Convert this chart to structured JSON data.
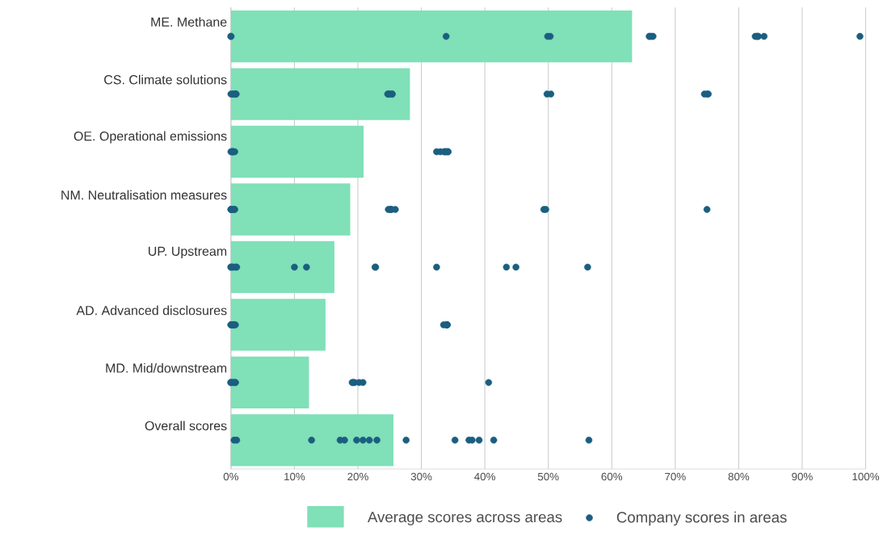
{
  "chart_data": {
    "type": "bar",
    "orientation": "horizontal",
    "categories": [
      "ME. Methane",
      "CS. Climate solutions",
      "OE. Operational emissions",
      "NM. Neutralisation measures",
      "UP. Upstream",
      "AD. Advanced disclosures",
      "MD. Mid/downstream",
      "Overall scores"
    ],
    "xlim": [
      0,
      100
    ],
    "xticks": [
      {
        "value": 0,
        "label": "0%"
      },
      {
        "value": 10,
        "label": "10%"
      },
      {
        "value": 20,
        "label": "20%"
      },
      {
        "value": 30,
        "label": "30%"
      },
      {
        "value": 40,
        "label": "40%"
      },
      {
        "value": 50,
        "label": "50%"
      },
      {
        "value": 60,
        "label": "60%"
      },
      {
        "value": 70,
        "label": "70%"
      },
      {
        "value": 80,
        "label": "80%"
      },
      {
        "value": 90,
        "label": "90%"
      },
      {
        "value": 100,
        "label": "100%"
      }
    ],
    "grid": "x",
    "legend": "bottom",
    "marker": "circle",
    "series": [
      {
        "name": "Average scores across areas",
        "color": "#80e0b8",
        "values": [
          63.2,
          28.2,
          20.9,
          18.8,
          16.3,
          14.9,
          12.3,
          25.6
        ]
      },
      {
        "name": "Company scores in areas",
        "type": "scatter",
        "color": "#1b5e80",
        "x": [
          "ME. Methane",
          "ME. Methane",
          "ME. Methane",
          "ME. Methane",
          "ME. Methane",
          "ME. Methane",
          "ME. Methane",
          "ME. Methane",
          "ME. Methane",
          "ME. Methane",
          "ME. Methane",
          "ME. Methane",
          "ME. Methane",
          "ME. Methane",
          "ME. Methane",
          "CS. Climate solutions",
          "CS. Climate solutions",
          "CS. Climate solutions",
          "CS. Climate solutions",
          "CS. Climate solutions",
          "CS. Climate solutions",
          "CS. Climate solutions",
          "CS. Climate solutions",
          "CS. Climate solutions",
          "CS. Climate solutions",
          "CS. Climate solutions",
          "CS. Climate solutions",
          "CS. Climate solutions",
          "CS. Climate solutions",
          "CS. Climate solutions",
          "OE. Operational emissions",
          "OE. Operational emissions",
          "OE. Operational emissions",
          "OE. Operational emissions",
          "OE. Operational emissions",
          "OE. Operational emissions",
          "OE. Operational emissions",
          "OE. Operational emissions",
          "OE. Operational emissions",
          "OE. Operational emissions",
          "OE. Operational emissions",
          "OE. Operational emissions",
          "OE. Operational emissions",
          "OE. Operational emissions",
          "NM. Neutralisation measures",
          "NM. Neutralisation measures",
          "NM. Neutralisation measures",
          "NM. Neutralisation measures",
          "NM. Neutralisation measures",
          "NM. Neutralisation measures",
          "NM. Neutralisation measures",
          "NM. Neutralisation measures",
          "NM. Neutralisation measures",
          "NM. Neutralisation measures",
          "NM. Neutralisation measures",
          "NM. Neutralisation measures",
          "NM. Neutralisation measures",
          "NM. Neutralisation measures",
          "UP. Upstream",
          "UP. Upstream",
          "UP. Upstream",
          "UP. Upstream",
          "UP. Upstream",
          "UP. Upstream",
          "UP. Upstream",
          "UP. Upstream",
          "UP. Upstream",
          "UP. Upstream",
          "UP. Upstream",
          "UP. Upstream",
          "UP. Upstream",
          "UP. Upstream",
          "AD. Advanced disclosures",
          "AD. Advanced disclosures",
          "AD. Advanced disclosures",
          "AD. Advanced disclosures",
          "AD. Advanced disclosures",
          "AD. Advanced disclosures",
          "AD. Advanced disclosures",
          "AD. Advanced disclosures",
          "AD. Advanced disclosures",
          "AD. Advanced disclosures",
          "AD. Advanced disclosures",
          "MD. Mid/downstream",
          "MD. Mid/downstream",
          "MD. Mid/downstream",
          "MD. Mid/downstream",
          "MD. Mid/downstream",
          "MD. Mid/downstream",
          "MD. Mid/downstream",
          "MD. Mid/downstream",
          "MD. Mid/downstream",
          "MD. Mid/downstream",
          "MD. Mid/downstream",
          "MD. Mid/downstream",
          "MD. Mid/downstream",
          "MD. Mid/downstream",
          "Overall scores",
          "Overall scores",
          "Overall scores",
          "Overall scores",
          "Overall scores",
          "Overall scores",
          "Overall scores",
          "Overall scores",
          "Overall scores",
          "Overall scores",
          "Overall scores",
          "Overall scores",
          "Overall scores",
          "Overall scores",
          "Overall scores",
          "Overall scores"
        ],
        "values": [
          0,
          0,
          33.9,
          50.3,
          49.9,
          65.9,
          66.3,
          66.0,
          66.5,
          82.6,
          82.9,
          83.1,
          82.9,
          84.0,
          99.1,
          0.8,
          0.5,
          0.3,
          0.8,
          0,
          25.4,
          24.8,
          25.0,
          25.4,
          24.7,
          50.4,
          49.8,
          74.6,
          75.2,
          75.0,
          0.3,
          0.2,
          0,
          0.6,
          0.3,
          0.2,
          32.4,
          33.7,
          34.2,
          34.0,
          33.8,
          33.0,
          33.6,
          34.2,
          0.5,
          0,
          0.6,
          0,
          0.2,
          0.1,
          25.2,
          25.3,
          25.1,
          24.8,
          25.9,
          49.3,
          49.6,
          75.0,
          0.4,
          0,
          0.9,
          0.2,
          0,
          0.8,
          11.9,
          10.0,
          22.8,
          22.7,
          32.4,
          43.4,
          44.9,
          56.2,
          0,
          0.7,
          0,
          0.4,
          0.5,
          0.3,
          34.0,
          33.5,
          34.0,
          34.1,
          34.0,
          0.4,
          0,
          0.4,
          0,
          0.7,
          0,
          0.7,
          19.3,
          19.5,
          20.8,
          19.2,
          20.2,
          19.1,
          40.6,
          0.5,
          0.9,
          12.7,
          17.2,
          17.9,
          19.8,
          20.8,
          21.8,
          23.0,
          27.6,
          35.3,
          37.5,
          38.0,
          39.1,
          41.4,
          56.4
        ]
      }
    ]
  }
}
